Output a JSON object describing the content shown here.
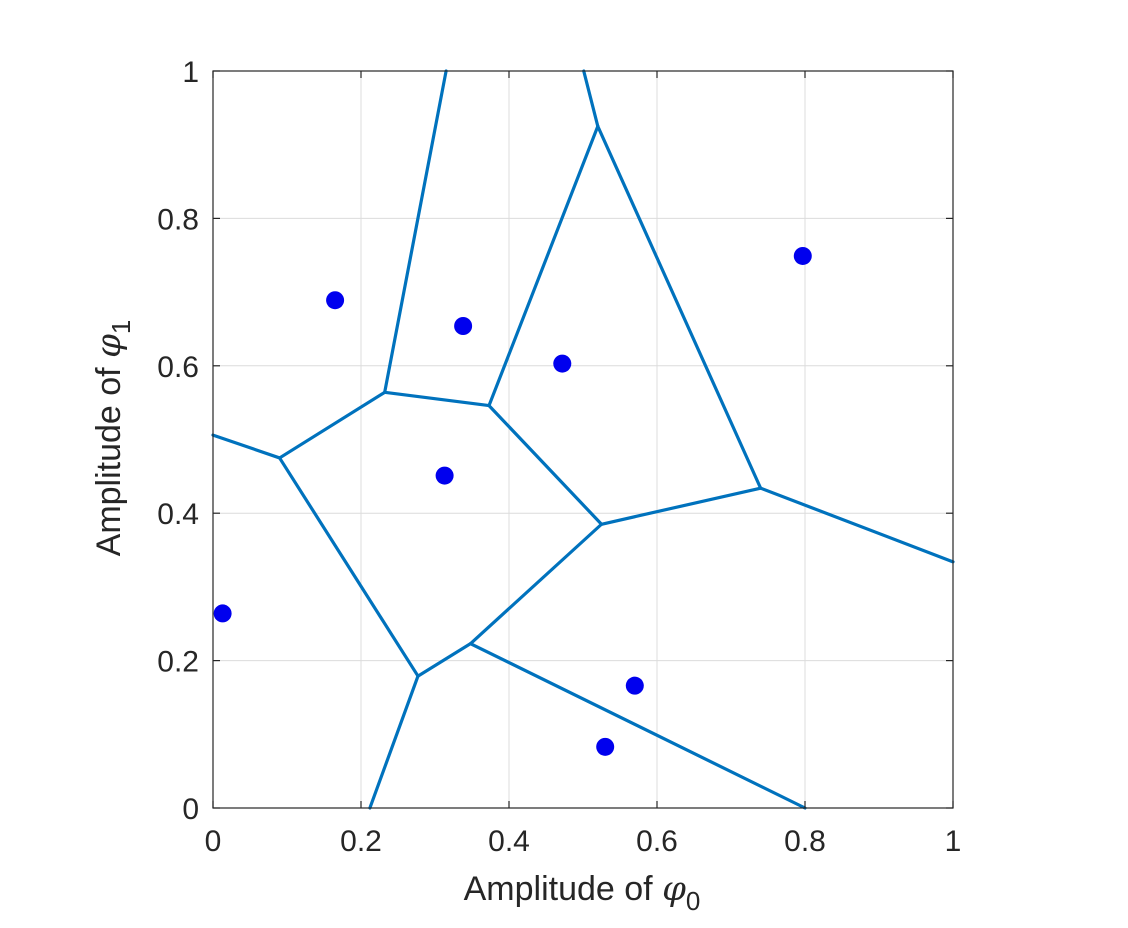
{
  "chart_data": {
    "type": "scatter",
    "title": "",
    "xlabel": {
      "prefix": "Amplitude of ",
      "symbol": "φ",
      "subscript": "0"
    },
    "ylabel": {
      "prefix": "Amplitude of ",
      "symbol": "φ",
      "subscript": "1"
    },
    "xlim": [
      0,
      1
    ],
    "ylim": [
      0,
      1
    ],
    "xticks": [
      0,
      0.2,
      0.4,
      0.6,
      0.8,
      1
    ],
    "yticks": [
      0,
      0.2,
      0.4,
      0.6,
      0.8,
      1
    ],
    "xtick_labels": [
      "0",
      "0.2",
      "0.4",
      "0.6",
      "0.8",
      "1"
    ],
    "ytick_labels": [
      "0",
      "0.2",
      "0.4",
      "0.6",
      "0.8",
      "1"
    ],
    "grid": true,
    "box": true,
    "colors": {
      "points": "#0000ee",
      "edges": "#0072bd",
      "grid": "#dcdcdc",
      "axes": "#262626"
    },
    "points": [
      {
        "x": 0.013,
        "y": 0.264
      },
      {
        "x": 0.165,
        "y": 0.689
      },
      {
        "x": 0.313,
        "y": 0.451
      },
      {
        "x": 0.338,
        "y": 0.654
      },
      {
        "x": 0.472,
        "y": 0.603
      },
      {
        "x": 0.53,
        "y": 0.083
      },
      {
        "x": 0.57,
        "y": 0.166
      },
      {
        "x": 0.797,
        "y": 0.749
      }
    ],
    "voronoi_edges": [
      [
        [
          0.0,
          0.506
        ],
        [
          0.09,
          0.475
        ]
      ],
      [
        [
          0.09,
          0.475
        ],
        [
          0.232,
          0.564
        ]
      ],
      [
        [
          0.232,
          0.564
        ],
        [
          0.373,
          0.546
        ]
      ],
      [
        [
          0.373,
          0.546
        ],
        [
          0.525,
          0.385
        ]
      ],
      [
        [
          0.525,
          0.385
        ],
        [
          0.74,
          0.434
        ]
      ],
      [
        [
          0.74,
          0.434
        ],
        [
          1.0,
          0.334
        ]
      ],
      [
        [
          0.09,
          0.475
        ],
        [
          0.277,
          0.179
        ]
      ],
      [
        [
          0.277,
          0.179
        ],
        [
          0.348,
          0.223
        ]
      ],
      [
        [
          0.348,
          0.223
        ],
        [
          0.525,
          0.385
        ]
      ],
      [
        [
          0.277,
          0.179
        ],
        [
          0.212,
          0.0
        ]
      ],
      [
        [
          0.348,
          0.223
        ],
        [
          0.8,
          0.0
        ]
      ],
      [
        [
          0.232,
          0.564
        ],
        [
          0.315,
          1.0
        ]
      ],
      [
        [
          0.373,
          0.546
        ],
        [
          0.52,
          0.925
        ]
      ],
      [
        [
          0.52,
          0.925
        ],
        [
          0.501,
          1.0
        ]
      ],
      [
        [
          0.52,
          0.925
        ],
        [
          0.74,
          0.434
        ]
      ]
    ]
  }
}
